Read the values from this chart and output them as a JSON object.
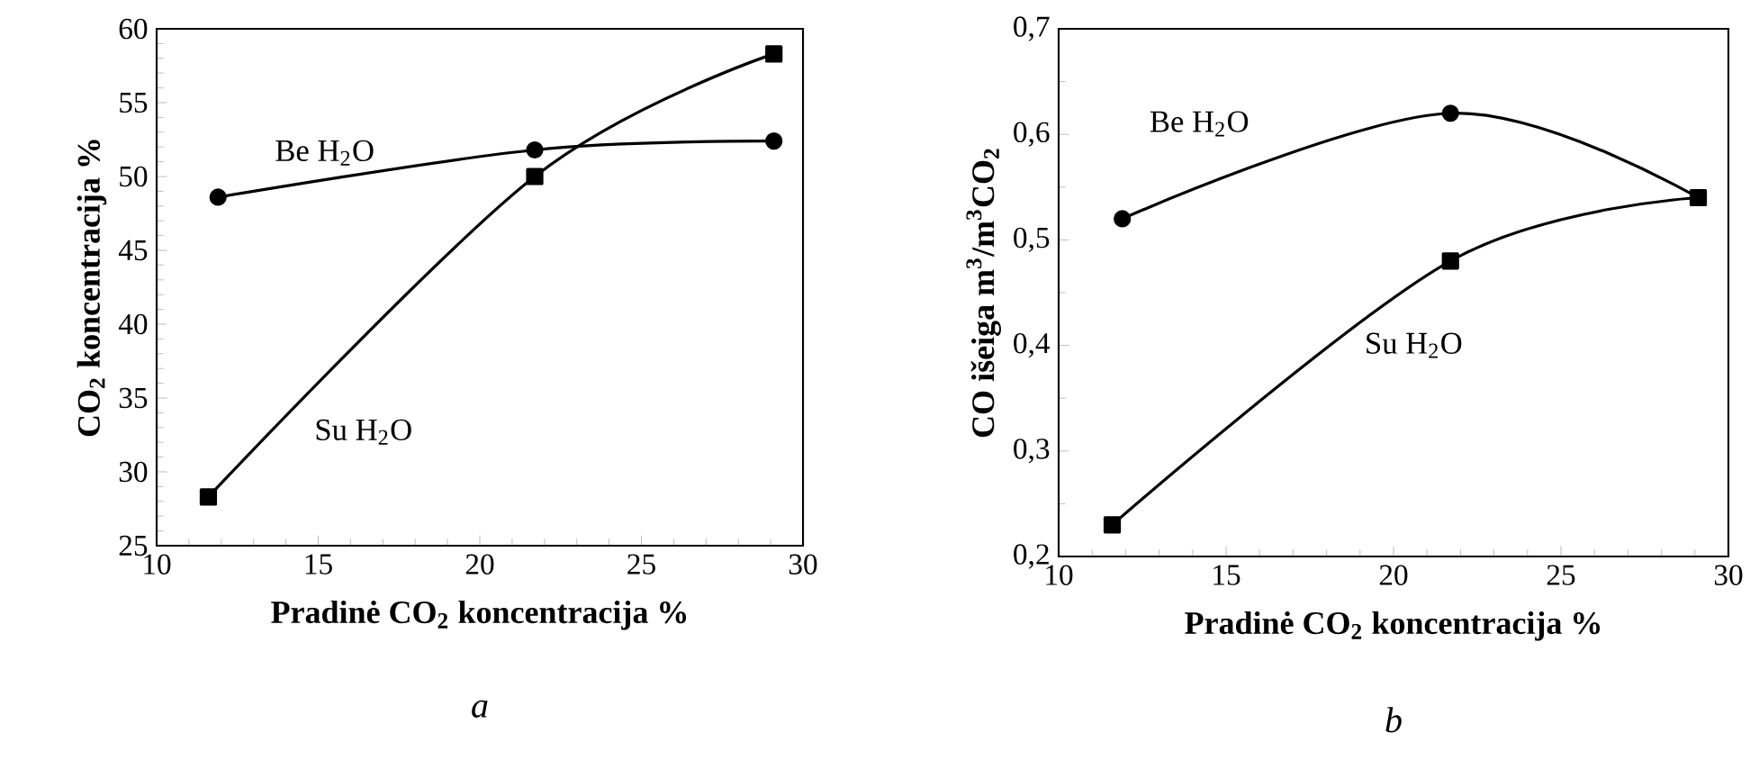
{
  "chart_data": [
    {
      "type": "line",
      "xlabel": "Pradinė CO$_{2}$ koncentracija %",
      "ylabel": "CO$_{2}$ koncentracija  %",
      "xlim": [
        10,
        30
      ],
      "xticks": [
        10,
        15,
        20,
        25,
        30
      ],
      "ylim": [
        25,
        60
      ],
      "yticks": [
        25,
        30,
        35,
        40,
        45,
        50,
        55,
        60
      ],
      "series": [
        {
          "x": [
            11.9,
            21.7,
            29.1
          ],
          "values": [
            48.6,
            51.8,
            52.4
          ],
          "color": "#000000",
          "marker": "circle"
        },
        {
          "x": [
            11.6,
            21.7,
            29.1
          ],
          "values": [
            28.3,
            50.0,
            58.3
          ],
          "color": "#000000",
          "marker": "square"
        }
      ],
      "annotations": [
        "Be H$_{2}$O",
        "Su H$_{2}$O",
        "a"
      ]
    },
    {
      "type": "line",
      "xlabel": "Pradinė CO$_{2}$ koncentracija %",
      "ylabel": "CO išeiga m$^{3}$/m$^{3}$CO$_{2}$",
      "xlim": [
        10,
        30
      ],
      "xticks": [
        10,
        15,
        20,
        25,
        30
      ],
      "ylim": [
        0.2,
        0.7
      ],
      "yticks": [
        {
          "value": 0.2,
          "label": "0,2"
        },
        {
          "value": 0.3,
          "label": "0,3"
        },
        {
          "value": 0.4,
          "label": "0,4"
        },
        {
          "value": 0.5,
          "label": "0,5"
        },
        {
          "value": 0.6,
          "label": "0,6"
        },
        {
          "value": 0.7,
          "label": "0,7"
        }
      ],
      "series": [
        {
          "x": [
            11.9,
            21.7,
            29.1
          ],
          "values": [
            0.52,
            0.62,
            0.54
          ],
          "color": "#000000",
          "marker": "circle"
        },
        {
          "x": [
            11.6,
            21.7,
            29.1
          ],
          "values": [
            0.23,
            0.48,
            0.54
          ],
          "color": "#000000",
          "marker": "square"
        }
      ],
      "annotations": [
        "Be H$_{2}$O",
        "Su H$_{2}$O",
        "b"
      ]
    }
  ]
}
